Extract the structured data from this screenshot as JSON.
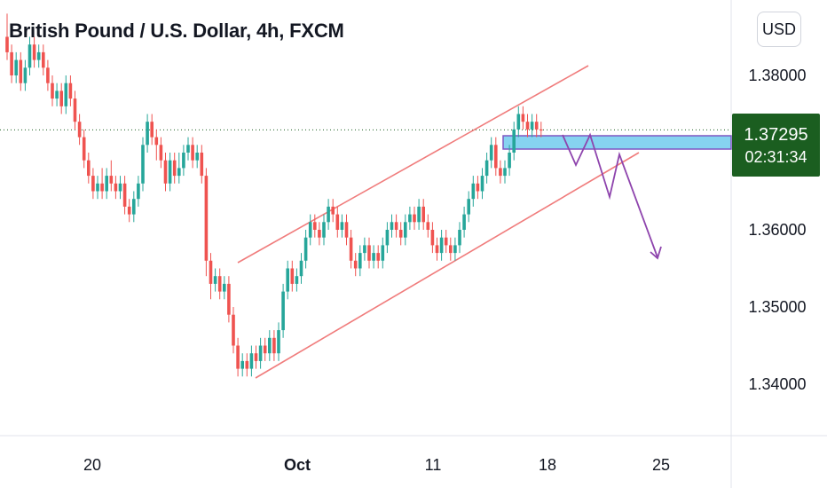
{
  "chart_data": {
    "type": "candlestick",
    "title": "British Pound / U.S. Dollar, 4h, FXCM",
    "currency": "USD",
    "y_ticks": [
      "1.38000",
      "1.36000",
      "1.35000",
      "1.34000"
    ],
    "x_ticks": [
      {
        "label": "20",
        "bold": false
      },
      {
        "label": "Oct",
        "bold": true
      },
      {
        "label": "11",
        "bold": false
      },
      {
        "label": "18",
        "bold": false
      },
      {
        "label": "25",
        "bold": false
      }
    ],
    "last_price": "1.37295",
    "countdown": "02:31:34",
    "ylim": [
      1.3335,
      1.3895
    ],
    "colors": {
      "up": "#26a69a",
      "down": "#ef5350",
      "channel": "#f07c7c",
      "zone_fill": "#86d3f0",
      "zone_border": "#7e57c2",
      "projection": "#8e44ad",
      "price_line": "#1b5e20",
      "price_tag": "#1b5e20"
    },
    "candles": [
      [
        1.385,
        1.383,
        1.388,
        1.382
      ],
      [
        1.383,
        1.38,
        1.384,
        1.379
      ],
      [
        1.38,
        1.382,
        1.383,
        1.379
      ],
      [
        1.382,
        1.379,
        1.383,
        1.378
      ],
      [
        1.379,
        1.381,
        1.382,
        1.378
      ],
      [
        1.381,
        1.384,
        1.385,
        1.38
      ],
      [
        1.384,
        1.382,
        1.385,
        1.381
      ],
      [
        1.382,
        1.383,
        1.384,
        1.381
      ],
      [
        1.383,
        1.381,
        1.384,
        1.38
      ],
      [
        1.381,
        1.379,
        1.382,
        1.378
      ],
      [
        1.379,
        1.377,
        1.38,
        1.376
      ],
      [
        1.377,
        1.378,
        1.379,
        1.376
      ],
      [
        1.378,
        1.376,
        1.379,
        1.375
      ],
      [
        1.376,
        1.379,
        1.38,
        1.375
      ],
      [
        1.379,
        1.377,
        1.38,
        1.376
      ],
      [
        1.377,
        1.374,
        1.378,
        1.373
      ],
      [
        1.374,
        1.372,
        1.375,
        1.371
      ],
      [
        1.372,
        1.369,
        1.373,
        1.368
      ],
      [
        1.369,
        1.367,
        1.37,
        1.366
      ],
      [
        1.367,
        1.365,
        1.368,
        1.364
      ],
      [
        1.365,
        1.366,
        1.367,
        1.364
      ],
      [
        1.366,
        1.365,
        1.368,
        1.364
      ],
      [
        1.365,
        1.367,
        1.368,
        1.364
      ],
      [
        1.367,
        1.366,
        1.369,
        1.365
      ],
      [
        1.366,
        1.365,
        1.367,
        1.364
      ],
      [
        1.365,
        1.366,
        1.367,
        1.364
      ],
      [
        1.366,
        1.363,
        1.367,
        1.362
      ],
      [
        1.363,
        1.362,
        1.364,
        1.361
      ],
      [
        1.362,
        1.364,
        1.365,
        1.361
      ],
      [
        1.364,
        1.366,
        1.367,
        1.363
      ],
      [
        1.366,
        1.371,
        1.372,
        1.365
      ],
      [
        1.371,
        1.374,
        1.375,
        1.37
      ],
      [
        1.374,
        1.372,
        1.375,
        1.371
      ],
      [
        1.372,
        1.371,
        1.373,
        1.369
      ],
      [
        1.371,
        1.369,
        1.372,
        1.368
      ],
      [
        1.369,
        1.366,
        1.37,
        1.365
      ],
      [
        1.366,
        1.369,
        1.37,
        1.365
      ],
      [
        1.369,
        1.367,
        1.37,
        1.366
      ],
      [
        1.367,
        1.368,
        1.37,
        1.366
      ],
      [
        1.368,
        1.37,
        1.371,
        1.367
      ],
      [
        1.37,
        1.371,
        1.372,
        1.369
      ],
      [
        1.371,
        1.369,
        1.372,
        1.368
      ],
      [
        1.369,
        1.37,
        1.371,
        1.368
      ],
      [
        1.37,
        1.367,
        1.371,
        1.366
      ],
      [
        1.367,
        1.356,
        1.368,
        1.354
      ],
      [
        1.356,
        1.353,
        1.357,
        1.351
      ],
      [
        1.353,
        1.354,
        1.355,
        1.352
      ],
      [
        1.354,
        1.352,
        1.355,
        1.351
      ],
      [
        1.352,
        1.353,
        1.354,
        1.351
      ],
      [
        1.353,
        1.349,
        1.354,
        1.348
      ],
      [
        1.349,
        1.345,
        1.35,
        1.344
      ],
      [
        1.345,
        1.342,
        1.346,
        1.341
      ],
      [
        1.342,
        1.343,
        1.344,
        1.341
      ],
      [
        1.343,
        1.342,
        1.344,
        1.341
      ],
      [
        1.342,
        1.344,
        1.345,
        1.341
      ],
      [
        1.344,
        1.343,
        1.345,
        1.342
      ],
      [
        1.343,
        1.345,
        1.346,
        1.342
      ],
      [
        1.345,
        1.344,
        1.346,
        1.343
      ],
      [
        1.344,
        1.346,
        1.347,
        1.343
      ],
      [
        1.346,
        1.344,
        1.347,
        1.343
      ],
      [
        1.344,
        1.347,
        1.348,
        1.343
      ],
      [
        1.347,
        1.352,
        1.353,
        1.346
      ],
      [
        1.352,
        1.355,
        1.356,
        1.351
      ],
      [
        1.355,
        1.353,
        1.356,
        1.352
      ],
      [
        1.353,
        1.354,
        1.355,
        1.352
      ],
      [
        1.354,
        1.356,
        1.357,
        1.353
      ],
      [
        1.356,
        1.359,
        1.36,
        1.355
      ],
      [
        1.359,
        1.361,
        1.362,
        1.358
      ],
      [
        1.361,
        1.36,
        1.362,
        1.359
      ],
      [
        1.36,
        1.359,
        1.361,
        1.358
      ],
      [
        1.359,
        1.361,
        1.362,
        1.358
      ],
      [
        1.361,
        1.363,
        1.364,
        1.36
      ],
      [
        1.363,
        1.362,
        1.364,
        1.361
      ],
      [
        1.362,
        1.36,
        1.363,
        1.359
      ],
      [
        1.36,
        1.361,
        1.362,
        1.359
      ],
      [
        1.361,
        1.359,
        1.362,
        1.358
      ],
      [
        1.359,
        1.356,
        1.36,
        1.355
      ],
      [
        1.356,
        1.355,
        1.357,
        1.354
      ],
      [
        1.355,
        1.357,
        1.358,
        1.354
      ],
      [
        1.357,
        1.358,
        1.359,
        1.356
      ],
      [
        1.358,
        1.356,
        1.359,
        1.355
      ],
      [
        1.356,
        1.357,
        1.358,
        1.355
      ],
      [
        1.357,
        1.356,
        1.358,
        1.355
      ],
      [
        1.356,
        1.358,
        1.359,
        1.355
      ],
      [
        1.358,
        1.36,
        1.361,
        1.357
      ],
      [
        1.36,
        1.361,
        1.362,
        1.359
      ],
      [
        1.361,
        1.36,
        1.362,
        1.359
      ],
      [
        1.36,
        1.359,
        1.361,
        1.358
      ],
      [
        1.359,
        1.361,
        1.362,
        1.358
      ],
      [
        1.361,
        1.362,
        1.363,
        1.36
      ],
      [
        1.362,
        1.361,
        1.363,
        1.36
      ],
      [
        1.361,
        1.363,
        1.364,
        1.36
      ],
      [
        1.363,
        1.361,
        1.364,
        1.36
      ],
      [
        1.361,
        1.36,
        1.362,
        1.359
      ],
      [
        1.36,
        1.358,
        1.361,
        1.357
      ],
      [
        1.358,
        1.357,
        1.359,
        1.356
      ],
      [
        1.357,
        1.359,
        1.36,
        1.356
      ],
      [
        1.359,
        1.358,
        1.36,
        1.357
      ],
      [
        1.358,
        1.357,
        1.359,
        1.356
      ],
      [
        1.357,
        1.358,
        1.359,
        1.356
      ],
      [
        1.358,
        1.36,
        1.361,
        1.357
      ],
      [
        1.36,
        1.362,
        1.363,
        1.359
      ],
      [
        1.362,
        1.364,
        1.365,
        1.361
      ],
      [
        1.364,
        1.366,
        1.367,
        1.363
      ],
      [
        1.366,
        1.365,
        1.367,
        1.364
      ],
      [
        1.365,
        1.367,
        1.368,
        1.364
      ],
      [
        1.367,
        1.369,
        1.37,
        1.366
      ],
      [
        1.369,
        1.371,
        1.372,
        1.368
      ],
      [
        1.371,
        1.368,
        1.372,
        1.367
      ],
      [
        1.368,
        1.367,
        1.369,
        1.366
      ],
      [
        1.367,
        1.368,
        1.369,
        1.366
      ],
      [
        1.368,
        1.37,
        1.371,
        1.367
      ],
      [
        1.37,
        1.373,
        1.374,
        1.369
      ],
      [
        1.373,
        1.375,
        1.376,
        1.372
      ],
      [
        1.375,
        1.374,
        1.376,
        1.373
      ],
      [
        1.374,
        1.373,
        1.375,
        1.372
      ],
      [
        1.373,
        1.374,
        1.375,
        1.372
      ],
      [
        1.374,
        1.373,
        1.375,
        1.372
      ],
      [
        1.373,
        1.3729,
        1.374,
        1.372
      ]
    ]
  }
}
